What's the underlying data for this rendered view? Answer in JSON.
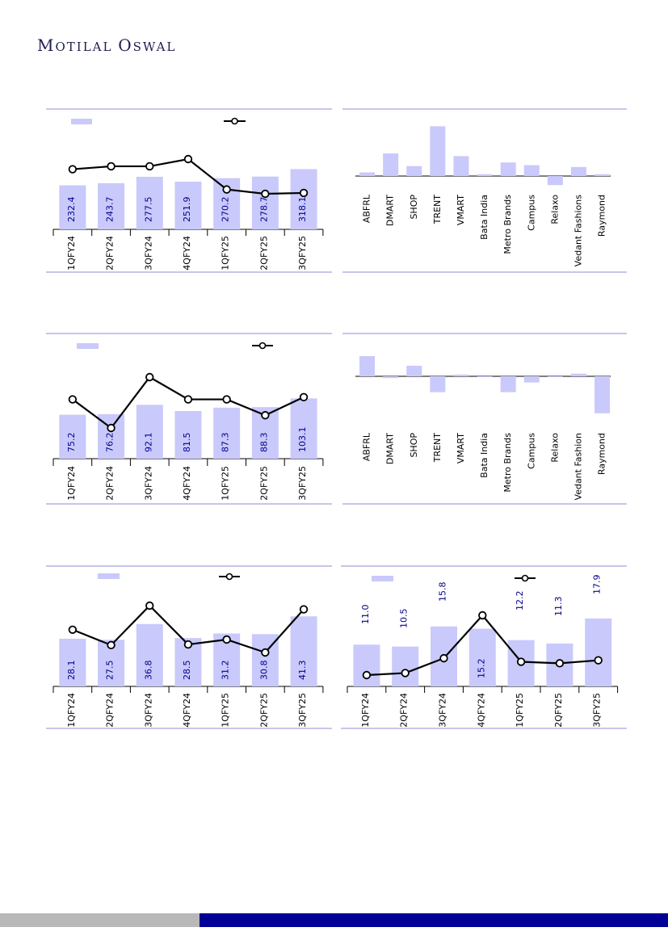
{
  "brand": {
    "name": "MOTILAL OSWAL",
    "name_cap1": "M",
    "name_rest1": "OTILAL ",
    "name_cap2": "O",
    "name_rest2": "SWAL"
  },
  "colors": {
    "bar": "#c9c9fb",
    "line": "#000000",
    "label": "#00008b",
    "rule": "#8e8edc",
    "footer_gray": "#b8b8b8",
    "footer_blue": "#000095"
  },
  "chart_data": [
    {
      "id": "c1",
      "type": "bar+line",
      "categories": [
        "1QFY24",
        "2QFY24",
        "3QFY24",
        "4QFY24",
        "1QFY25",
        "2QFY25",
        "3QFY25"
      ],
      "series": [
        {
          "values": [
            232.4,
            243.7,
            277.5,
            251.9,
            270.2,
            278.7,
            318.1
          ],
          "labels": [
            "232.4",
            "243.7",
            "277.5",
            "251.9",
            "270.2",
            "278.7",
            "318.1"
          ]
        },
        {
          "values": [
            22,
            23,
            23,
            25.5,
            15,
            13.5,
            13.8
          ]
        }
      ],
      "legend": {
        "bar": "",
        "line": ""
      }
    },
    {
      "id": "c2",
      "type": "bar",
      "categories": [
        "ABFRL",
        "DMART",
        "SHOP",
        "TRENT",
        "VMART",
        "Bata India",
        "Metro Brands",
        "Campus",
        "Relaxo",
        "Vedant Fashions",
        "Raymond"
      ],
      "values": [
        4,
        25,
        11,
        55,
        22,
        2,
        15,
        12,
        -10,
        10,
        2
      ]
    },
    {
      "id": "c3",
      "type": "bar+line",
      "categories": [
        "1QFY24",
        "2QFY24",
        "3QFY24",
        "4QFY24",
        "1QFY25",
        "2QFY25",
        "3QFY25"
      ],
      "series": [
        {
          "values": [
            75.2,
            76.2,
            92.1,
            81.5,
            87.3,
            88.3,
            103.1
          ],
          "labels": [
            "75.2",
            "76.2",
            "92.1",
            "81.5",
            "87.3",
            "88.3",
            "103.1"
          ]
        },
        {
          "values": [
            24,
            15,
            31,
            24,
            24,
            19,
            24.7
          ]
        }
      ],
      "legend": {
        "bar": "",
        "line": ""
      }
    },
    {
      "id": "c4",
      "type": "bar",
      "categories": [
        "ABFRL",
        "DMART",
        "SHOP",
        "TRENT",
        "VMART",
        "Bata India",
        "Metro Brands",
        "Campus",
        "Relaxo",
        "Vedant Fashion",
        "Raymond"
      ],
      "values": [
        23,
        -2,
        12,
        -18,
        2,
        -1,
        -18,
        -7,
        -1,
        3,
        -42
      ]
    },
    {
      "id": "c5",
      "type": "bar+line",
      "categories": [
        "1QFY24",
        "2QFY24",
        "3QFY24",
        "4QFY24",
        "1QFY25",
        "2QFY25",
        "3QFY25"
      ],
      "series": [
        {
          "values": [
            28.1,
            27.5,
            36.8,
            28.5,
            31.2,
            30.8,
            41.3
          ],
          "labels": [
            "28.1",
            "27.5",
            "36.8",
            "28.5",
            "31.2",
            "30.8",
            "41.3"
          ]
        },
        {
          "values": [
            12.4,
            9.9,
            16.3,
            10,
            10.8,
            8.7,
            15.7
          ]
        }
      ],
      "legend": {
        "bar": "",
        "line": ""
      }
    },
    {
      "id": "c6",
      "type": "bar+line",
      "categories": [
        "1QFY24",
        "2QFY24",
        "3QFY24",
        "4QFY24",
        "1QFY25",
        "2QFY25",
        "3QFY25"
      ],
      "series": [
        {
          "values": [
            11.0,
            10.5,
            15.8,
            15.2,
            12.2,
            11.3,
            17.9
          ],
          "labels": [
            "11.0",
            "10.5",
            "15.8",
            "15.2",
            "12.2",
            "11.3",
            "17.9"
          ]
        },
        {
          "values": [
            1.8,
            2.5,
            7.5,
            22,
            6.3,
            5.8,
            6.8
          ]
        }
      ],
      "legend": {
        "bar": "",
        "line": ""
      }
    }
  ]
}
